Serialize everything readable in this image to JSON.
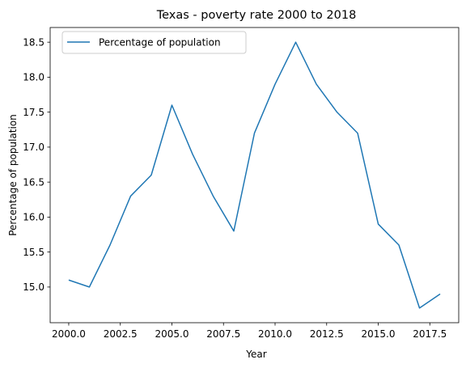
{
  "chart_data": {
    "type": "line",
    "title": "Texas - poverty rate 2000 to 2018",
    "xlabel": "Year",
    "ylabel": "Percentage of population",
    "xlim": [
      1999.1,
      2018.9
    ],
    "ylim": [
      14.49,
      18.71
    ],
    "xticks": [
      2000.0,
      2002.5,
      2005.0,
      2007.5,
      2010.0,
      2012.5,
      2015.0,
      2017.5
    ],
    "xtick_labels": [
      "2000.0",
      "2002.5",
      "2005.0",
      "2007.5",
      "2010.0",
      "2012.5",
      "2015.0",
      "2017.5"
    ],
    "yticks": [
      15.0,
      15.5,
      16.0,
      16.5,
      17.0,
      17.5,
      18.0,
      18.5
    ],
    "ytick_labels": [
      "15.0",
      "15.5",
      "16.0",
      "16.5",
      "17.0",
      "17.5",
      "18.0",
      "18.5"
    ],
    "grid": false,
    "legend_position": "upper-left",
    "series": [
      {
        "name": "Percentage of population",
        "color": "#1f77b4",
        "x": [
          2000,
          2001,
          2002,
          2003,
          2004,
          2005,
          2006,
          2007,
          2008,
          2009,
          2010,
          2011,
          2012,
          2013,
          2014,
          2015,
          2016,
          2017,
          2018
        ],
        "y": [
          15.1,
          15.0,
          15.6,
          16.3,
          16.6,
          17.6,
          16.9,
          16.3,
          15.8,
          17.2,
          17.9,
          18.5,
          17.9,
          17.5,
          17.2,
          15.9,
          15.6,
          14.7,
          14.9
        ]
      }
    ]
  }
}
